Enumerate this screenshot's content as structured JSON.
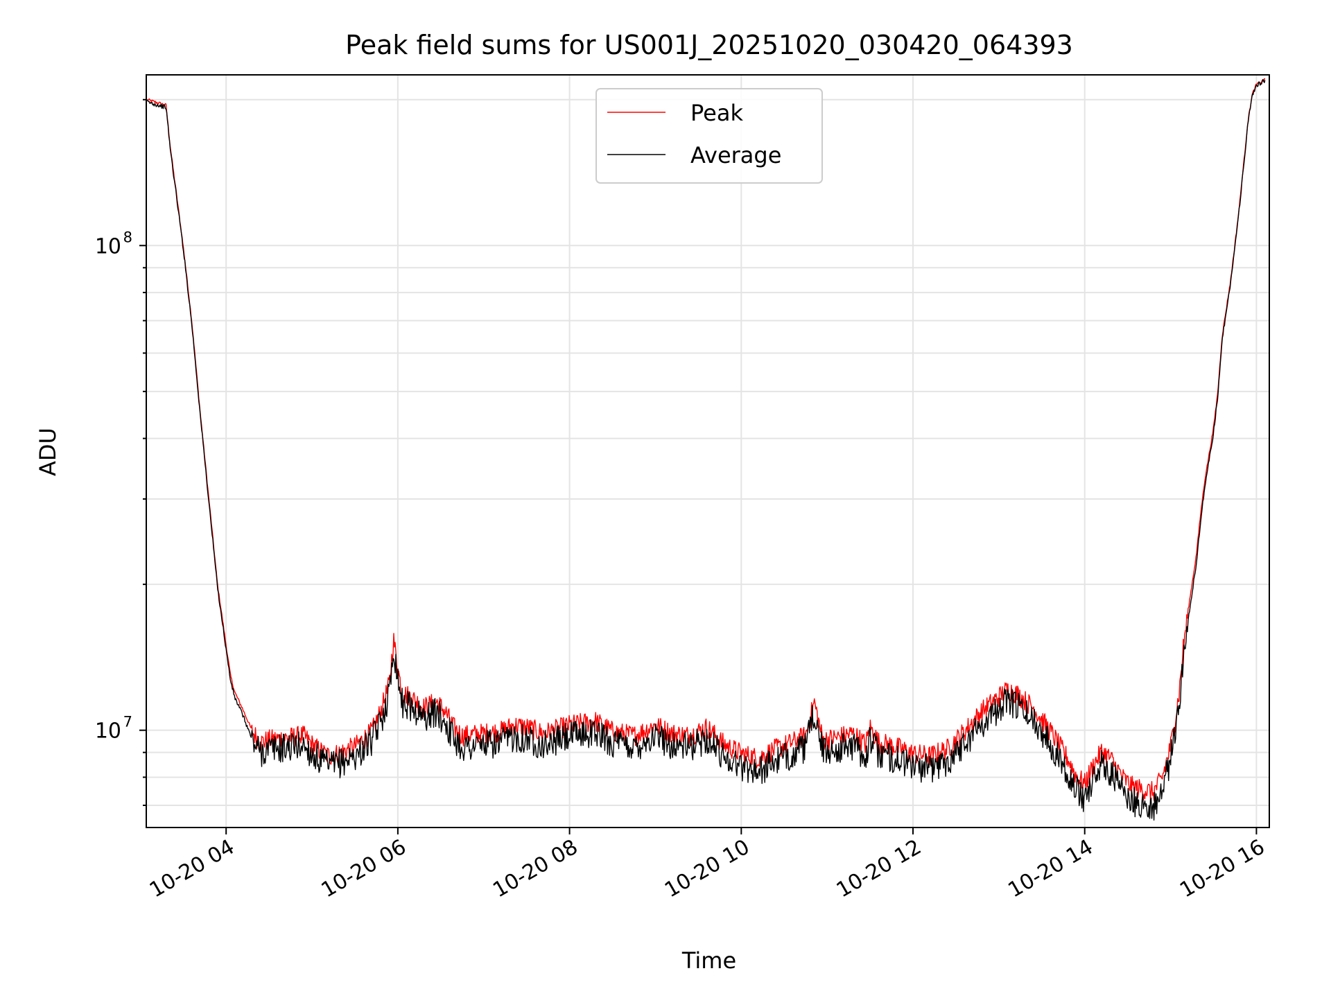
{
  "chart_data": {
    "type": "line",
    "title": "Peak field sums for US001J_20251020_030420_064393",
    "xlabel": "Time",
    "ylabel": "ADU",
    "yscale": "log",
    "ylim": [
      6300000,
      225000000
    ],
    "xlim_hours": [
      3.07,
      16.15
    ],
    "grid": true,
    "legend_position": "top-center",
    "x_ticks": [
      {
        "hour": 4,
        "label": "10-20 04"
      },
      {
        "hour": 6,
        "label": "10-20 06"
      },
      {
        "hour": 8,
        "label": "10-20 08"
      },
      {
        "hour": 10,
        "label": "10-20 10"
      },
      {
        "hour": 12,
        "label": "10-20 12"
      },
      {
        "hour": 14,
        "label": "10-20 14"
      },
      {
        "hour": 16,
        "label": "10-20 16"
      }
    ],
    "y_ticks": [
      {
        "value": 10000000,
        "base": "10",
        "exp": "7"
      },
      {
        "value": 100000000,
        "base": "10",
        "exp": "8"
      }
    ],
    "series": [
      {
        "name": "Peak",
        "color": "#ff0000",
        "noise": 0.05,
        "x": [
          3.08,
          3.3,
          3.35,
          3.5,
          3.6,
          3.7,
          3.8,
          3.9,
          4.0,
          4.05,
          4.1,
          4.2,
          4.3,
          4.4,
          4.5,
          4.7,
          4.9,
          5.0,
          5.1,
          5.2,
          5.3,
          5.5,
          5.7,
          5.8,
          5.9,
          5.95,
          6.0,
          6.05,
          6.15,
          6.3,
          6.45,
          6.55,
          6.65,
          6.75,
          7.0,
          7.2,
          7.35,
          7.5,
          7.7,
          8.0,
          8.3,
          8.5,
          8.75,
          9.0,
          9.2,
          9.4,
          9.6,
          9.8,
          10.0,
          10.2,
          10.4,
          10.6,
          10.75,
          10.85,
          10.95,
          11.1,
          11.3,
          11.45,
          11.5,
          11.6,
          11.8,
          12.0,
          12.2,
          12.4,
          12.6,
          12.8,
          13.0,
          13.1,
          13.2,
          13.4,
          13.6,
          13.8,
          13.9,
          14.0,
          14.1,
          14.2,
          14.3,
          14.45,
          14.55,
          14.65,
          14.8,
          14.9,
          15.0,
          15.05,
          15.1,
          15.15,
          15.2,
          15.3,
          15.35,
          15.4,
          15.5,
          15.55,
          15.6,
          15.7,
          15.8,
          15.9,
          15.95,
          16.0,
          16.1
        ],
        "y": [
          200000000,
          195000000,
          160000000,
          100000000,
          70000000,
          45000000,
          30000000,
          20000000,
          15000000,
          13000000,
          12000000,
          11000000,
          10000000,
          9500000,
          9600000,
          9700000,
          9800000,
          9400000,
          9100000,
          8900000,
          9000000,
          9300000,
          10000000,
          11000000,
          12500000,
          15500000,
          13500000,
          12000000,
          11800000,
          11200000,
          11500000,
          11000000,
          10200000,
          9800000,
          9900000,
          10000000,
          10300000,
          10200000,
          9900000,
          10300000,
          10500000,
          10000000,
          9800000,
          10300000,
          9900000,
          9800000,
          10200000,
          9400000,
          9000000,
          8800000,
          9200000,
          9500000,
          9800000,
          11500000,
          9600000,
          9700000,
          9900000,
          9400000,
          10200000,
          9500000,
          9300000,
          9000000,
          8900000,
          9200000,
          10000000,
          11000000,
          11800000,
          12200000,
          12000000,
          11200000,
          10000000,
          8800000,
          8100000,
          7800000,
          8500000,
          9100000,
          8800000,
          8000000,
          7700000,
          7600000,
          7500000,
          8000000,
          9300000,
          10500000,
          12000000,
          15000000,
          17500000,
          23000000,
          28000000,
          33000000,
          42000000,
          50000000,
          65000000,
          85000000,
          120000000,
          180000000,
          205000000,
          215000000,
          220000000
        ]
      },
      {
        "name": "Average",
        "color": "#000000",
        "noise": 0.07,
        "x": [
          3.08,
          3.3,
          3.35,
          3.5,
          3.6,
          3.7,
          3.8,
          3.9,
          4.0,
          4.05,
          4.1,
          4.2,
          4.3,
          4.4,
          4.5,
          4.7,
          4.9,
          5.0,
          5.1,
          5.2,
          5.3,
          5.5,
          5.7,
          5.8,
          5.9,
          5.95,
          6.0,
          6.05,
          6.15,
          6.3,
          6.45,
          6.55,
          6.65,
          6.75,
          7.0,
          7.2,
          7.35,
          7.5,
          7.7,
          8.0,
          8.3,
          8.5,
          8.75,
          9.0,
          9.2,
          9.4,
          9.6,
          9.8,
          10.0,
          10.2,
          10.4,
          10.6,
          10.75,
          10.85,
          10.95,
          11.1,
          11.3,
          11.45,
          11.5,
          11.6,
          11.8,
          12.0,
          12.2,
          12.4,
          12.6,
          12.8,
          13.0,
          13.1,
          13.2,
          13.4,
          13.6,
          13.8,
          13.9,
          14.0,
          14.1,
          14.2,
          14.3,
          14.45,
          14.55,
          14.65,
          14.8,
          14.9,
          15.0,
          15.05,
          15.1,
          15.15,
          15.2,
          15.3,
          15.35,
          15.4,
          15.5,
          15.55,
          15.6,
          15.7,
          15.8,
          15.9,
          15.95,
          16.0,
          16.1
        ],
        "y": [
          198000000,
          193000000,
          158000000,
          99000000,
          69000000,
          44500000,
          29500000,
          19700000,
          14700000,
          12700000,
          11700000,
          10700000,
          9600000,
          9100000,
          9200000,
          9300000,
          9400000,
          9000000,
          8700000,
          8500000,
          8600000,
          8900000,
          9600000,
          10500000,
          12000000,
          15000000,
          13000000,
          11500000,
          11300000,
          10700000,
          11000000,
          10500000,
          9700000,
          9300000,
          9400000,
          9500000,
          9800000,
          9700000,
          9400000,
          9800000,
          10000000,
          9500000,
          9300000,
          9800000,
          9400000,
          9300000,
          9700000,
          8900000,
          8500000,
          8300000,
          8700000,
          9000000,
          9300000,
          11000000,
          9100000,
          9200000,
          9400000,
          8900000,
          9700000,
          9000000,
          8800000,
          8500000,
          8400000,
          8700000,
          9500000,
          10400000,
          11200000,
          11600000,
          11400000,
          10600000,
          9500000,
          8300000,
          7600000,
          7300000,
          8000000,
          8600000,
          8300000,
          7500000,
          7200000,
          7100000,
          7000000,
          7500000,
          8800000,
          10000000,
          11400000,
          14300000,
          16800000,
          22000000,
          27000000,
          32000000,
          41000000,
          49000000,
          64000000,
          84000000,
          119000000,
          178000000,
          203000000,
          214000000,
          219500000
        ]
      }
    ]
  }
}
